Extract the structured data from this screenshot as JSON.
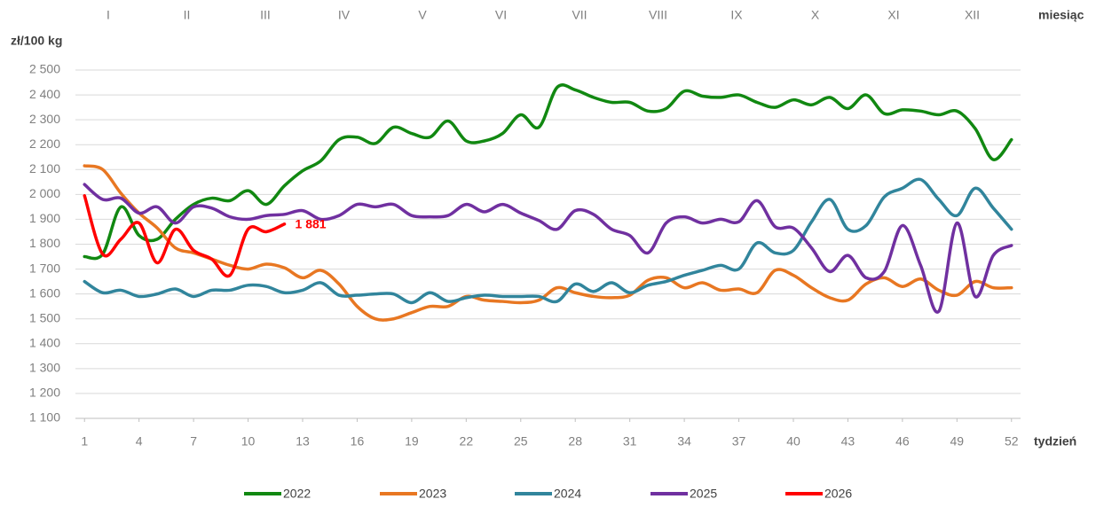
{
  "chart_data": {
    "type": "line",
    "y_label": "zł/100 kg",
    "x_label": "tydzień",
    "x2_label": "miesiąc",
    "months": [
      "I",
      "II",
      "III",
      "IV",
      "V",
      "VI",
      "VII",
      "VIII",
      "IX",
      "X",
      "XI",
      "XII"
    ],
    "x": [
      1,
      2,
      3,
      4,
      5,
      6,
      7,
      8,
      9,
      10,
      11,
      12,
      13,
      14,
      15,
      16,
      17,
      18,
      19,
      20,
      21,
      22,
      23,
      24,
      25,
      26,
      27,
      28,
      29,
      30,
      31,
      32,
      33,
      34,
      35,
      36,
      37,
      38,
      39,
      40,
      41,
      42,
      43,
      44,
      45,
      46,
      47,
      48,
      49,
      50,
      51,
      52
    ],
    "xlim": [
      0.5,
      52.5
    ],
    "xticks": [
      1,
      4,
      7,
      10,
      13,
      16,
      19,
      22,
      25,
      28,
      31,
      34,
      37,
      40,
      43,
      46,
      49,
      52
    ],
    "ylim": [
      1100,
      2500
    ],
    "yticks": [
      {
        "value": 1100,
        "label": "1 100"
      },
      {
        "value": 1200,
        "label": "1 200"
      },
      {
        "value": 1300,
        "label": "1 300"
      },
      {
        "value": 1400,
        "label": "1 400"
      },
      {
        "value": 1500,
        "label": "1 500"
      },
      {
        "value": 1600,
        "label": "1 600"
      },
      {
        "value": 1700,
        "label": "1 700"
      },
      {
        "value": 1800,
        "label": "1 800"
      },
      {
        "value": 1900,
        "label": "1 900"
      },
      {
        "value": 2000,
        "label": "2 000"
      },
      {
        "value": 2100,
        "label": "2 100"
      },
      {
        "value": 2200,
        "label": "2 200"
      },
      {
        "value": 2300,
        "label": "2 300"
      },
      {
        "value": 2400,
        "label": "2 400"
      },
      {
        "value": 2500,
        "label": "2 500"
      }
    ],
    "grid": true,
    "legend": "bottom",
    "series": [
      {
        "name": "2022",
        "color": "#118811",
        "values": [
          1750,
          1760,
          1950,
          1835,
          1820,
          1900,
          1960,
          1985,
          1975,
          2015,
          1960,
          2035,
          2095,
          2135,
          2220,
          2230,
          2205,
          2270,
          2245,
          2230,
          2295,
          2215,
          2215,
          2245,
          2320,
          2270,
          2430,
          2420,
          2390,
          2370,
          2370,
          2335,
          2345,
          2415,
          2395,
          2390,
          2400,
          2370,
          2350,
          2380,
          2360,
          2390,
          2345,
          2400,
          2325,
          2340,
          2335,
          2320,
          2335,
          2265,
          2140,
          2220
        ]
      },
      {
        "name": "2023",
        "color": "#e87722",
        "values": [
          2115,
          2100,
          2005,
          1925,
          1865,
          1785,
          1765,
          1740,
          1715,
          1700,
          1720,
          1705,
          1665,
          1695,
          1640,
          1550,
          1500,
          1500,
          1525,
          1550,
          1550,
          1590,
          1575,
          1570,
          1565,
          1575,
          1625,
          1605,
          1590,
          1585,
          1595,
          1655,
          1665,
          1625,
          1645,
          1615,
          1620,
          1605,
          1695,
          1675,
          1625,
          1585,
          1575,
          1640,
          1665,
          1630,
          1660,
          1615,
          1595,
          1650,
          1625,
          1625
        ]
      },
      {
        "name": "2024",
        "color": "#31859c",
        "values": [
          1650,
          1605,
          1615,
          1590,
          1600,
          1620,
          1590,
          1615,
          1615,
          1635,
          1630,
          1605,
          1615,
          1645,
          1595,
          1595,
          1600,
          1600,
          1565,
          1605,
          1570,
          1585,
          1595,
          1590,
          1590,
          1590,
          1570,
          1640,
          1610,
          1645,
          1605,
          1635,
          1650,
          1675,
          1695,
          1715,
          1700,
          1805,
          1765,
          1775,
          1890,
          1980,
          1860,
          1875,
          1990,
          2025,
          2060,
          1980,
          1915,
          2025,
          1945,
          1860
        ]
      },
      {
        "name": "2025",
        "color": "#7030a0",
        "values": [
          2040,
          1980,
          1985,
          1925,
          1950,
          1885,
          1950,
          1945,
          1910,
          1900,
          1915,
          1920,
          1935,
          1900,
          1915,
          1960,
          1950,
          1960,
          1915,
          1910,
          1915,
          1960,
          1930,
          1960,
          1925,
          1895,
          1860,
          1935,
          1920,
          1860,
          1835,
          1765,
          1885,
          1910,
          1885,
          1900,
          1890,
          1975,
          1870,
          1865,
          1785,
          1690,
          1755,
          1665,
          1690,
          1875,
          1715,
          1530,
          1885,
          1590,
          1755,
          1795
        ]
      },
      {
        "name": "2026",
        "color": "#ff0000",
        "values": [
          1995,
          1760,
          1820,
          1885,
          1725,
          1860,
          1775,
          1740,
          1675,
          1860,
          1850,
          1881,
          null,
          null,
          null,
          null,
          null,
          null,
          null,
          null,
          null,
          null,
          null,
          null,
          null,
          null,
          null,
          null,
          null,
          null,
          null,
          null,
          null,
          null,
          null,
          null,
          null,
          null,
          null,
          null,
          null,
          null,
          null,
          null,
          null,
          null,
          null,
          null,
          null,
          null,
          null,
          null
        ]
      }
    ],
    "annotations": [
      {
        "label": "1 881",
        "x": 12,
        "value": 1881,
        "color": "#ff0000"
      }
    ]
  }
}
